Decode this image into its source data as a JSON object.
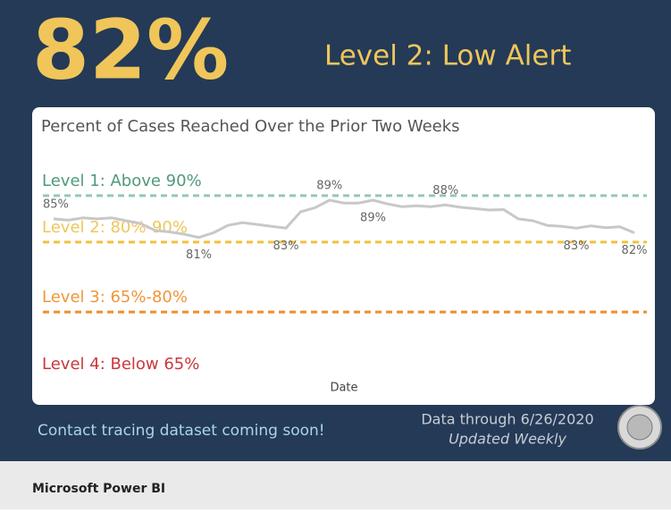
{
  "headline": {
    "value": "82%",
    "status": "Level 2: Low Alert"
  },
  "chart_data": {
    "type": "line",
    "title": "Percent of Cases Reached Over the Prior Two Weeks",
    "x_label": "Date",
    "ylim": [
      51,
      94
    ],
    "color": "#c8c8c8",
    "values": [
      85,
      84.7,
      85.2,
      85,
      85.2,
      84.6,
      84,
      82.5,
      82.2,
      81.7,
      81,
      82,
      83.6,
      84.2,
      83.8,
      83.4,
      83,
      86.5,
      87.4,
      89,
      88.4,
      88.4,
      89,
      88.2,
      87.6,
      87.8,
      87.6,
      88,
      87.5,
      87.2,
      86.9,
      87,
      85,
      84.6,
      83.6,
      83.4,
      83,
      83.5,
      83.1,
      83.3,
      82
    ],
    "value_labels": [
      "85%",
      null,
      null,
      null,
      null,
      null,
      null,
      null,
      null,
      null,
      "81%",
      null,
      null,
      null,
      null,
      null,
      "83%",
      null,
      null,
      "89%",
      null,
      null,
      "89%",
      null,
      null,
      null,
      null,
      "88%",
      null,
      null,
      null,
      null,
      null,
      null,
      null,
      null,
      "83%",
      null,
      null,
      null,
      "82%"
    ],
    "levels": [
      {
        "label": "Level 1: Above 90%",
        "value": 90,
        "color": "#4f9a7a",
        "line_color": "#93c9b1"
      },
      {
        "label": "Level 2: 80%-90%",
        "value": 80,
        "color": "#f0c65a",
        "line_color": "#f2c23c"
      },
      {
        "label": "Level 3: 65%-80%",
        "value": 65,
        "color": "#f0963a",
        "line_color": "#ef8f2a"
      },
      {
        "label": "Level 4: Below 65%",
        "color": "#c9373a"
      }
    ]
  },
  "footer": {
    "note": "Contact tracing dataset coming soon!",
    "data_through": "Data through 6/26/2020",
    "updated": "Updated Weekly"
  },
  "app": {
    "name": "Microsoft Power BI"
  }
}
